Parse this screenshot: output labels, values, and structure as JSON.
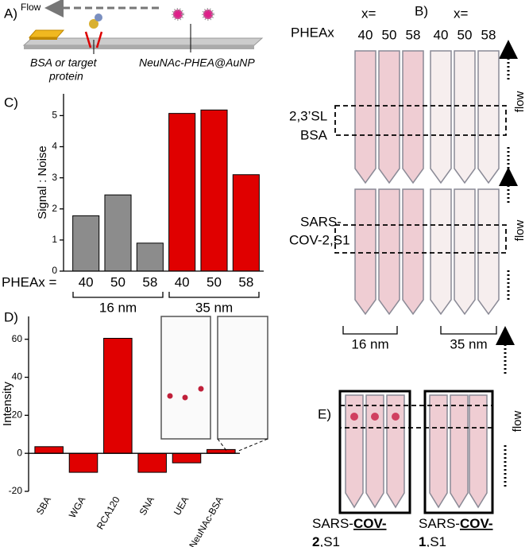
{
  "panel_a": {
    "label": "A)",
    "flow": "Flow",
    "captions": [
      [
        "BSA or target",
        "protein"
      ],
      "NeuNAc-PHEA@AuNP"
    ]
  },
  "panel_b": {
    "label": "B)",
    "x_labels": [
      "x=",
      "x="
    ],
    "pheax": "PHEAx",
    "columns": [
      "40",
      "50",
      "58",
      "40",
      "50",
      "58"
    ],
    "rows": [
      [
        "2,3’SL",
        "BSA"
      ],
      [
        "SARS-",
        "COV-2,S1"
      ]
    ],
    "flow": "flow",
    "groups": [
      "16 nm",
      "35 nm"
    ]
  },
  "panel_e": {
    "label": "E)",
    "flow": "flow",
    "captions": [
      {
        "prefix": "SARS-",
        "strain": "COV-",
        "number": "2",
        "suffix": ",S1"
      },
      {
        "prefix": "SARS-",
        "strain": "COV-",
        "number": "1",
        "suffix": ",S1"
      }
    ]
  },
  "chart_data": [
    {
      "type": "bar",
      "panel": "C)",
      "ylabel": "Signal : Noise",
      "x_prefix": "PHEAx =",
      "categories": [
        "40",
        "50",
        "58",
        "40",
        "50",
        "58"
      ],
      "values": [
        1.78,
        2.45,
        0.9,
        5.07,
        5.18,
        3.1
      ],
      "colors": [
        "#8c8c8c",
        "#8c8c8c",
        "#8c8c8c",
        "#e00000",
        "#e00000",
        "#e00000"
      ],
      "groups": [
        "16 nm",
        "35 nm"
      ],
      "ylim": [
        0,
        5.7
      ],
      "yticks": [
        0,
        1,
        2,
        3,
        4,
        5
      ]
    },
    {
      "type": "bar",
      "panel": "D)",
      "ylabel": "Intensity",
      "categories": [
        "SBA",
        "WGA",
        "RCA120",
        "SNA",
        "UEA",
        "NeuNAc-BSA"
      ],
      "values": [
        3.5,
        -10,
        60.5,
        -10,
        -5,
        2
      ],
      "color": "#e00000",
      "rotate_labels": true,
      "ylim": [
        -20,
        72
      ],
      "yticks": [
        -20,
        0,
        20,
        40,
        60
      ]
    }
  ]
}
